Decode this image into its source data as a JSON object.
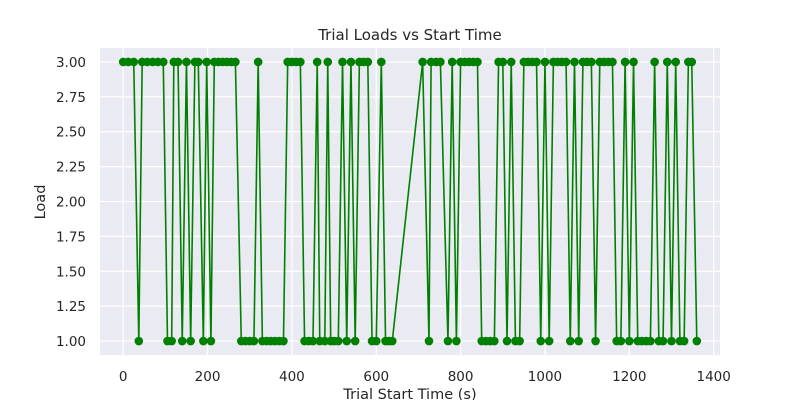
{
  "chart_data": {
    "type": "line",
    "title": "Trial Loads vs Start Time",
    "xlabel": "Trial Start Time (s)",
    "ylabel": "Load",
    "xlim": [
      -55,
      1415
    ],
    "ylim": [
      0.9,
      3.1
    ],
    "x_ticks": [
      0,
      200,
      400,
      600,
      800,
      1000,
      1200,
      1400
    ],
    "x_tick_labels": [
      "0",
      "200",
      "400",
      "600",
      "800",
      "1000",
      "1200",
      "1400"
    ],
    "y_ticks": [
      1.0,
      1.25,
      1.5,
      1.75,
      2.0,
      2.25,
      2.5,
      2.75,
      3.0
    ],
    "y_tick_labels": [
      "1.00",
      "1.25",
      "1.50",
      "1.75",
      "2.00",
      "2.25",
      "2.50",
      "2.75",
      "3.00"
    ],
    "grid": true,
    "background": "#eaeaf2",
    "series": [
      {
        "color": "#008000",
        "marker": "circle",
        "x": [
          0,
          12,
          25,
          37,
          45,
          57,
          70,
          82,
          95,
          105,
          115,
          120,
          130,
          140,
          150,
          160,
          170,
          178,
          190,
          198,
          208,
          216,
          226,
          236,
          246,
          256,
          266,
          280,
          290,
          300,
          310,
          320,
          330,
          340,
          350,
          360,
          370,
          380,
          390,
          400,
          410,
          420,
          430,
          440,
          450,
          460,
          466,
          478,
          485,
          492,
          500,
          510,
          520,
          530,
          540,
          550,
          560,
          570,
          580,
          590,
          600,
          612,
          622,
          630,
          638,
          710,
          725,
          730,
          742,
          752,
          770,
          780,
          790,
          800,
          810,
          820,
          830,
          840,
          850,
          860,
          870,
          880,
          890,
          900,
          910,
          920,
          930,
          940,
          950,
          960,
          970,
          980,
          990,
          1000,
          1010,
          1020,
          1030,
          1040,
          1050,
          1060,
          1070,
          1080,
          1090,
          1100,
          1110,
          1120,
          1130,
          1140,
          1150,
          1160,
          1170,
          1180,
          1190,
          1200,
          1210,
          1220,
          1230,
          1240,
          1250,
          1260,
          1270,
          1280,
          1290,
          1300,
          1310,
          1320,
          1330,
          1340,
          1348,
          1360
        ],
        "y": [
          3,
          3,
          3,
          1,
          3,
          3,
          3,
          3,
          3,
          1,
          1,
          3,
          3,
          1,
          3,
          1,
          3,
          3,
          1,
          3,
          1,
          3,
          3,
          3,
          3,
          3,
          3,
          1,
          1,
          1,
          1,
          3,
          1,
          1,
          1,
          1,
          1,
          1,
          3,
          3,
          3,
          3,
          1,
          1,
          1,
          3,
          1,
          1,
          3,
          1,
          1,
          1,
          3,
          1,
          3,
          1,
          3,
          3,
          3,
          1,
          1,
          3,
          1,
          1,
          1,
          3,
          1,
          3,
          3,
          3,
          1,
          3,
          1,
          3,
          3,
          3,
          3,
          3,
          1,
          1,
          1,
          1,
          3,
          3,
          1,
          3,
          1,
          1,
          3,
          3,
          3,
          3,
          1,
          3,
          1,
          3,
          3,
          3,
          3,
          1,
          3,
          1,
          3,
          3,
          3,
          1,
          3,
          3,
          3,
          3,
          1,
          1,
          3,
          1,
          3,
          1,
          1,
          1,
          1,
          3,
          1,
          1,
          3,
          1,
          3,
          1,
          1,
          3,
          3,
          1
        ]
      }
    ]
  }
}
